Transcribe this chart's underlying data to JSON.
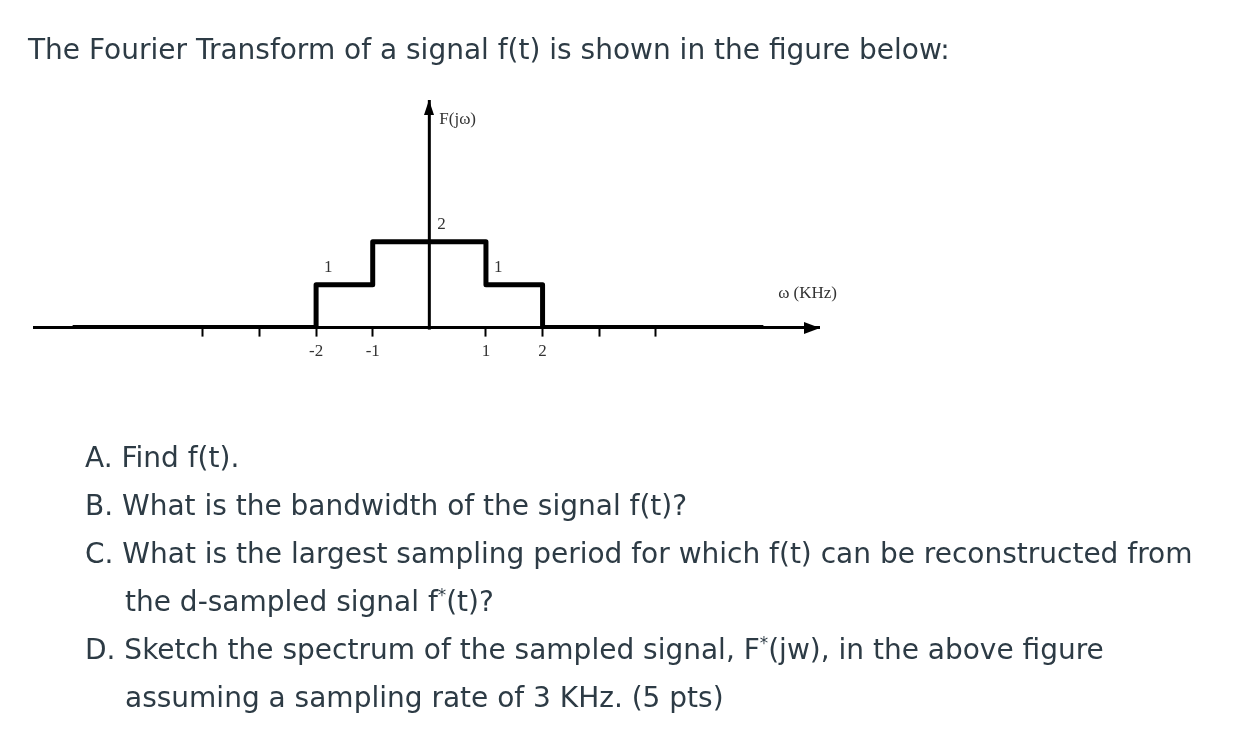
{
  "chart_data": {
    "type": "step",
    "title": "The Fourier Transform of a signal f(t) is shown in the figure below:",
    "xlabel": "ω (KHz)",
    "ylabel": "F(jω)",
    "x": [
      -6.3,
      -2,
      -1,
      0,
      1,
      2,
      5.9
    ],
    "series": [
      {
        "color": "#000000",
        "values": [
          0,
          1,
          2,
          2,
          1,
          0,
          0
        ],
        "value_labels": [
          null,
          "1",
          null,
          "2",
          "1",
          null,
          null
        ]
      }
    ],
    "xlim": [
      -7,
      6.9
    ],
    "xticks": [
      {
        "value": -4,
        "label": null
      },
      {
        "value": -3,
        "label": null
      },
      -2,
      -1,
      1,
      2,
      {
        "value": 3,
        "label": null
      },
      {
        "value": 4,
        "label": null
      }
    ],
    "ylim": [
      0,
      5.3
    ],
    "tick_labels": "x",
    "annotations": [
      "A. Find f(t).",
      "B. What is the bandwidth of the signal f(t)?",
      "C. What is the largest sampling period for which f(t) can be reconstructed from the d-sampled signal f$^{*}$(t)?",
      "D. Sketch the spectrum of the sampled signal, F$^{*}$(jw), in the above figure assuming a sampling rate of 3 KHz. (5 pts)"
    ]
  }
}
